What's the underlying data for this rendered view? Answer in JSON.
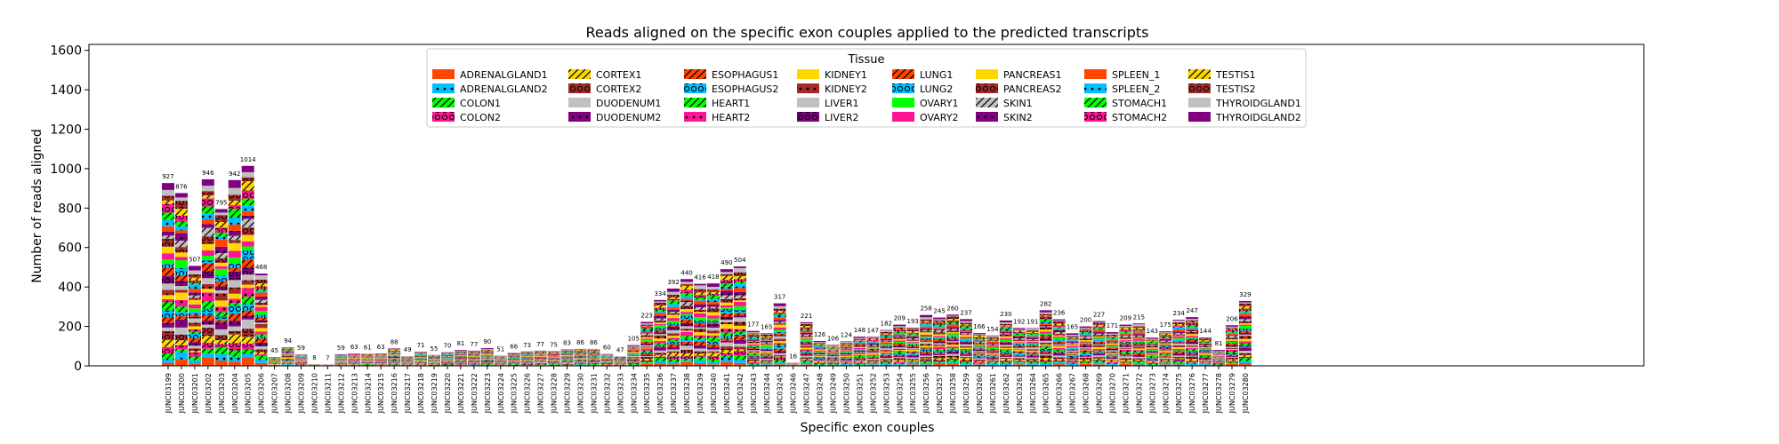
{
  "chart_data": {
    "type": "bar",
    "stacked": true,
    "title": "Reads aligned on the specific exon couples applied to the predicted transcripts",
    "xlabel": "Specific exon couples",
    "ylabel": "Number of reads aligned",
    "ylim": [
      0,
      1630
    ],
    "yticks": [
      0,
      200,
      400,
      600,
      800,
      1000,
      1200,
      1400,
      1600
    ],
    "legend": {
      "title": "Tissue",
      "placement": "top-center",
      "entries": [
        {
          "name": "ADRENALGLAND1",
          "color": "#FF4500",
          "hatch": ""
        },
        {
          "name": "ADRENALGLAND2",
          "color": "#00BFFF",
          "hatch": "dot"
        },
        {
          "name": "COLON1",
          "color": "#00FF00",
          "hatch": "slash"
        },
        {
          "name": "COLON2",
          "color": "#FF1493",
          "hatch": "circle"
        },
        {
          "name": "CORTEX1",
          "color": "#FFD700",
          "hatch": "slash"
        },
        {
          "name": "CORTEX2",
          "color": "#A52A2A",
          "hatch": "circle"
        },
        {
          "name": "DUODENUM1",
          "color": "#C0C0C0",
          "hatch": ""
        },
        {
          "name": "DUODENUM2",
          "color": "#800080",
          "hatch": "dot"
        },
        {
          "name": "ESOPHAGUS1",
          "color": "#FF4500",
          "hatch": "slash"
        },
        {
          "name": "ESOPHAGUS2",
          "color": "#00BFFF",
          "hatch": "circle"
        },
        {
          "name": "HEART1",
          "color": "#00FF00",
          "hatch": "slash"
        },
        {
          "name": "HEART2",
          "color": "#FF1493",
          "hatch": "dot"
        },
        {
          "name": "KIDNEY1",
          "color": "#FFD700",
          "hatch": ""
        },
        {
          "name": "KIDNEY2",
          "color": "#A52A2A",
          "hatch": "dot"
        },
        {
          "name": "LIVER1",
          "color": "#C0C0C0",
          "hatch": ""
        },
        {
          "name": "LIVER2",
          "color": "#800080",
          "hatch": "circle"
        },
        {
          "name": "LUNG1",
          "color": "#FF4500",
          "hatch": "slash"
        },
        {
          "name": "LUNG2",
          "color": "#00BFFF",
          "hatch": "circle"
        },
        {
          "name": "OVARY1",
          "color": "#00FF00",
          "hatch": ""
        },
        {
          "name": "OVARY2",
          "color": "#FF1493",
          "hatch": ""
        },
        {
          "name": "PANCREAS1",
          "color": "#FFD700",
          "hatch": ""
        },
        {
          "name": "PANCREAS2",
          "color": "#A52A2A",
          "hatch": "circle"
        },
        {
          "name": "SKIN1",
          "color": "#C0C0C0",
          "hatch": "slash"
        },
        {
          "name": "SKIN2",
          "color": "#800080",
          "hatch": "dot"
        },
        {
          "name": "SPLEEN_1",
          "color": "#FF4500",
          "hatch": ""
        },
        {
          "name": "SPLEEN_2",
          "color": "#00BFFF",
          "hatch": "dot"
        },
        {
          "name": "STOMACH1",
          "color": "#00FF00",
          "hatch": "slash"
        },
        {
          "name": "STOMACH2",
          "color": "#FF1493",
          "hatch": "circle"
        },
        {
          "name": "TESTIS1",
          "color": "#FFD700",
          "hatch": "slash"
        },
        {
          "name": "TESTIS2",
          "color": "#A52A2A",
          "hatch": "circle"
        },
        {
          "name": "THYROIDGLAND1",
          "color": "#C0C0C0",
          "hatch": ""
        },
        {
          "name": "THYROIDGLAND2",
          "color": "#800080",
          "hatch": ""
        }
      ]
    },
    "categories": [
      "JUNC03199",
      "JUNC03200",
      "JUNC03201",
      "JUNC03202",
      "JUNC03203",
      "JUNC03204",
      "JUNC03205",
      "JUNC03206",
      "JUNC03207",
      "JUNC03208",
      "JUNC03209",
      "JUNC03210",
      "JUNC03211",
      "JUNC03212",
      "JUNC03213",
      "JUNC03214",
      "JUNC03215",
      "JUNC03216",
      "JUNC03217",
      "JUNC03218",
      "JUNC03219",
      "JUNC03220",
      "JUNC03221",
      "JUNC03222",
      "JUNC03223",
      "JUNC03224",
      "JUNC03225",
      "JUNC03226",
      "JUNC03227",
      "JUNC03228",
      "JUNC03229",
      "JUNC03230",
      "JUNC03231",
      "JUNC03232",
      "JUNC03233",
      "JUNC03234",
      "JUNC03235",
      "JUNC03236",
      "JUNC03237",
      "JUNC03238",
      "JUNC03239",
      "JUNC03240",
      "JUNC03241",
      "JUNC03242",
      "JUNC03243",
      "JUNC03244",
      "JUNC03245",
      "JUNC03246",
      "JUNC03247",
      "JUNC03248",
      "JUNC03249",
      "JUNC03250",
      "JUNC03251",
      "JUNC03252",
      "JUNC03253",
      "JUNC03254",
      "JUNC03255",
      "JUNC03256",
      "JUNC03257",
      "JUNC03258",
      "JUNC03259",
      "JUNC03260",
      "JUNC03261",
      "JUNC03262",
      "JUNC03263",
      "JUNC03264",
      "JUNC03265",
      "JUNC03266",
      "JUNC03267",
      "JUNC03268",
      "JUNC03269",
      "JUNC03270",
      "JUNC03271",
      "JUNC03272",
      "JUNC03273",
      "JUNC03274",
      "JUNC03275",
      "JUNC03276",
      "JUNC03277",
      "JUNC03278",
      "JUNC03279",
      "JUNC03280"
    ],
    "totals": [
      927,
      876,
      507,
      946,
      795,
      942,
      1014,
      468,
      45,
      94,
      59,
      8,
      7,
      59,
      63,
      61,
      63,
      88,
      49,
      71,
      55,
      70,
      81,
      77,
      90,
      51,
      66,
      73,
      77,
      75,
      83,
      86,
      86,
      60,
      47,
      105,
      223,
      334,
      392,
      440,
      416,
      418,
      490,
      504,
      177,
      165,
      317,
      16,
      221,
      126,
      106,
      124,
      148,
      147,
      182,
      209,
      193,
      258,
      245,
      260,
      237,
      166,
      154,
      230,
      192,
      191,
      282,
      236,
      165,
      200,
      227,
      171,
      209,
      215,
      143,
      175,
      234,
      247,
      144,
      81,
      206,
      329
    ],
    "total_labels": [
      "927",
      "876",
      "507",
      "946",
      "795",
      "942",
      "1014",
      "468",
      "45",
      "94",
      "59",
      "8",
      "7",
      "59",
      "63",
      "61",
      "63",
      "88",
      "49",
      "71",
      "55",
      "70",
      "81",
      "77",
      "90",
      "51",
      "66",
      "73",
      "77",
      "75",
      "83",
      "86",
      "86",
      "60",
      "47",
      "105",
      "223",
      "334",
      "392",
      "440",
      "416",
      "418",
      "490",
      "504",
      "177",
      "165",
      "317",
      "16",
      "221",
      "126",
      "106",
      "124",
      "148",
      "147",
      "182",
      "209",
      "193",
      "258",
      "245",
      "260",
      "237",
      "166",
      "154",
      "230",
      "192",
      "191",
      "282",
      "236",
      "165",
      "200",
      "227",
      "171",
      "209",
      "215",
      "143",
      "175",
      "234",
      "247",
      "144",
      "81",
      "206",
      "329"
    ]
  }
}
